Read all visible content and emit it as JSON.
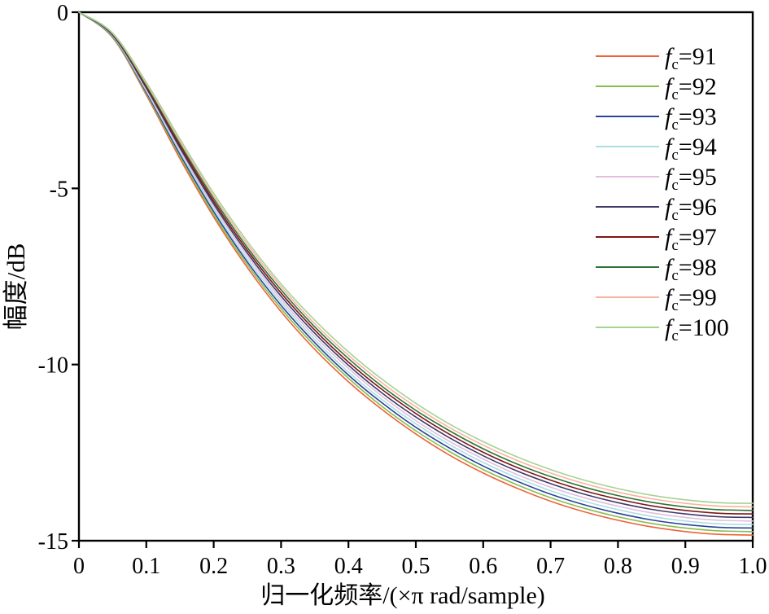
{
  "chart_data": {
    "type": "line",
    "title": "",
    "xlabel": "归一化频率/(×π rad/sample)",
    "ylabel": "幅度/dB",
    "xlim": [
      0,
      1
    ],
    "ylim": [
      -15,
      0
    ],
    "grid": false,
    "legend_position": "upper right outside-plot-right-inside-frame",
    "x_ticks": [
      "0",
      "0.1",
      "0.2",
      "0.3",
      "0.4",
      "0.5",
      "0.6",
      "0.7",
      "0.8",
      "0.9",
      "1.0"
    ],
    "x_tick_values": [
      0,
      0.1,
      0.2,
      0.3,
      0.4,
      0.5,
      0.6,
      0.7,
      0.8,
      0.9,
      1.0
    ],
    "y_ticks": [
      "0",
      "-5",
      "-10",
      "-15"
    ],
    "y_tick_values": [
      0,
      -5,
      -10,
      -15
    ],
    "legend_prefix": "f",
    "legend_sub": "c",
    "legend_eq": "=",
    "x": [
      0,
      0.05,
      0.1,
      0.15,
      0.2,
      0.25,
      0.3,
      0.35,
      0.4,
      0.45,
      0.5,
      0.55,
      0.6,
      0.65,
      0.7,
      0.75,
      0.8,
      0.85,
      0.9,
      0.95,
      1.0
    ],
    "series": [
      {
        "name": "fc=91",
        "fc": "91",
        "color": "#EC6339",
        "values": [
          0,
          -0.72,
          -2.35,
          -4.16,
          -5.81,
          -7.25,
          -8.5,
          -9.57,
          -10.49,
          -11.28,
          -11.97,
          -12.57,
          -13.08,
          -13.51,
          -13.88,
          -14.18,
          -14.42,
          -14.61,
          -14.74,
          -14.82,
          -14.84
        ]
      },
      {
        "name": "fc=92",
        "fc": "92",
        "color": "#87BE4D",
        "values": [
          0,
          -0.71,
          -2.31,
          -4.09,
          -5.74,
          -7.17,
          -8.41,
          -9.47,
          -10.39,
          -11.19,
          -11.88,
          -12.47,
          -12.98,
          -13.41,
          -13.78,
          -14.08,
          -14.32,
          -14.51,
          -14.64,
          -14.72,
          -14.74
        ]
      },
      {
        "name": "fc=93",
        "fc": "93",
        "color": "#28439A",
        "values": [
          0,
          -0.69,
          -2.27,
          -4.03,
          -5.66,
          -7.09,
          -8.32,
          -9.38,
          -10.3,
          -11.09,
          -11.78,
          -12.37,
          -12.88,
          -13.31,
          -13.68,
          -13.98,
          -14.22,
          -14.41,
          -14.54,
          -14.62,
          -14.64
        ]
      },
      {
        "name": "fc=94",
        "fc": "94",
        "color": "#ACDEE3",
        "values": [
          0,
          -0.68,
          -2.23,
          -3.97,
          -5.59,
          -7.01,
          -8.23,
          -9.29,
          -10.21,
          -11.0,
          -11.68,
          -12.27,
          -12.78,
          -13.21,
          -13.58,
          -13.88,
          -14.12,
          -14.31,
          -14.44,
          -14.52,
          -14.54
        ]
      },
      {
        "name": "fc=95",
        "fc": "95",
        "color": "#E2BEDE",
        "values": [
          0,
          -0.66,
          -2.19,
          -3.91,
          -5.51,
          -6.92,
          -8.15,
          -9.2,
          -10.11,
          -10.9,
          -11.59,
          -12.18,
          -12.68,
          -13.12,
          -13.48,
          -13.78,
          -14.02,
          -14.21,
          -14.34,
          -14.42,
          -14.44
        ]
      },
      {
        "name": "fc=96",
        "fc": "96",
        "color": "#3F3A68",
        "values": [
          0,
          -0.65,
          -2.15,
          -3.85,
          -5.44,
          -6.84,
          -8.06,
          -9.11,
          -10.02,
          -10.81,
          -11.49,
          -12.08,
          -12.59,
          -13.02,
          -13.38,
          -13.68,
          -13.92,
          -14.11,
          -14.24,
          -14.32,
          -14.34
        ]
      },
      {
        "name": "fc=97",
        "fc": "97",
        "color": "#7E1517",
        "values": [
          0,
          -0.63,
          -2.11,
          -3.79,
          -5.37,
          -6.76,
          -7.97,
          -9.02,
          -9.93,
          -10.71,
          -11.39,
          -11.98,
          -12.49,
          -12.92,
          -13.28,
          -13.58,
          -13.82,
          -14.01,
          -14.14,
          -14.22,
          -14.24
        ]
      },
      {
        "name": "fc=98",
        "fc": "98",
        "color": "#2E7434",
        "values": [
          0,
          -0.62,
          -2.07,
          -3.73,
          -5.29,
          -6.68,
          -7.88,
          -8.93,
          -9.83,
          -10.62,
          -11.3,
          -11.88,
          -12.39,
          -12.82,
          -13.18,
          -13.48,
          -13.72,
          -13.91,
          -14.04,
          -14.12,
          -14.14
        ]
      },
      {
        "name": "fc=99",
        "fc": "99",
        "color": "#F9B2A4",
        "values": [
          0,
          -0.6,
          -2.03,
          -3.67,
          -5.22,
          -6.59,
          -7.79,
          -8.84,
          -9.74,
          -10.52,
          -11.2,
          -11.79,
          -12.29,
          -12.72,
          -13.08,
          -13.38,
          -13.62,
          -13.81,
          -13.94,
          -14.02,
          -14.04
        ]
      },
      {
        "name": "fc=100",
        "fc": "100",
        "color": "#A5D392",
        "values": [
          0,
          -0.59,
          -1.99,
          -3.6,
          -5.14,
          -6.51,
          -7.71,
          -8.74,
          -9.64,
          -10.42,
          -11.1,
          -11.69,
          -12.19,
          -12.62,
          -12.98,
          -13.28,
          -13.52,
          -13.71,
          -13.84,
          -13.92,
          -13.94
        ]
      }
    ]
  }
}
